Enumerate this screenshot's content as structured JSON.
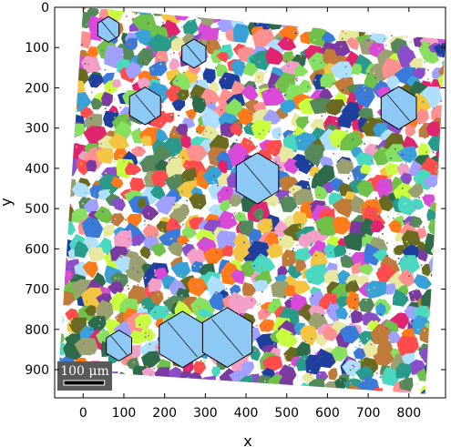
{
  "chart_data": {
    "type": "heatmap",
    "title": "",
    "xlabel": "x",
    "ylabel": "y",
    "xlim": [
      -70,
      890
    ],
    "ylim": [
      970,
      0
    ],
    "y_inverted": true,
    "x_ticks": [
      0,
      100,
      200,
      300,
      400,
      500,
      600,
      700,
      800
    ],
    "y_ticks": [
      0,
      100,
      200,
      300,
      400,
      500,
      600,
      700,
      800,
      900
    ],
    "grid": false,
    "map_corners": [
      [
        0,
        0
      ],
      [
        890,
        80
      ],
      [
        840,
        960
      ],
      [
        -60,
        900
      ]
    ],
    "scale_bar": {
      "label": "100 μm",
      "length": 100
    },
    "highlighted_grains": [
      {
        "center": [
          62,
          55
        ],
        "size": 30
      },
      {
        "center": [
          272,
          115
        ],
        "size": 34
      },
      {
        "center": [
          152,
          245
        ],
        "size": 44
      },
      {
        "center": [
          775,
          250
        ],
        "size": 50
      },
      {
        "center": [
          428,
          425
        ],
        "size": 60
      },
      {
        "center": [
          244,
          825
        ],
        "size": 66
      },
      {
        "center": [
          354,
          820
        ],
        "size": 70
      },
      {
        "center": [
          88,
          840
        ],
        "size": 36
      }
    ],
    "palette": [
      "#e0246f",
      "#3aa0d8",
      "#6fc14a",
      "#f4c542",
      "#8a4fc8",
      "#ff7a1a",
      "#2e6b4a",
      "#d94ad8",
      "#88e060",
      "#1f3f9f",
      "#b0e0ff",
      "#ff4d4d",
      "#9aa070",
      "#e8e8a0",
      "#4ad8c0",
      "#c07a3a",
      "#7b3aa0",
      "#f2a0c8",
      "#55885a",
      "#2a9a8a",
      "#c8ff40",
      "#6a6a20",
      "#ff9090",
      "#3a7ad8",
      "#a0a0ff"
    ],
    "background_color": "#ffffff",
    "hull_color": "#8ec9f5"
  }
}
